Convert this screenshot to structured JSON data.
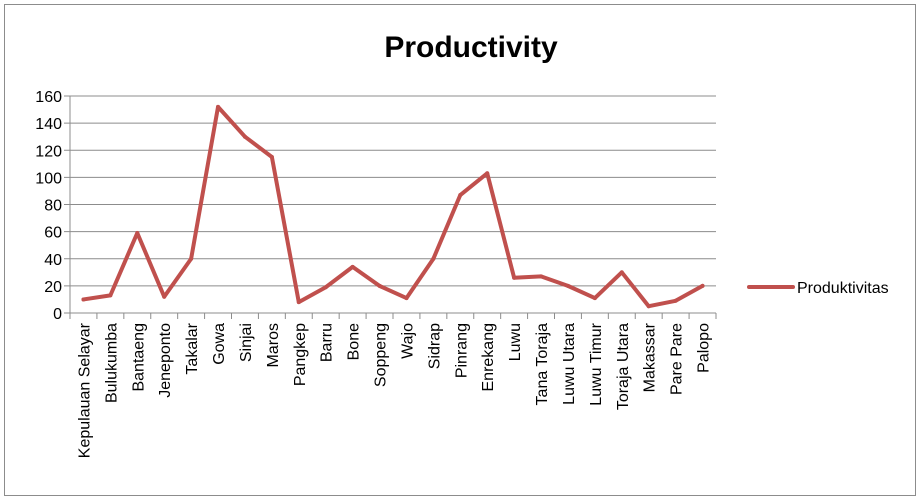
{
  "chart_data": {
    "type": "line",
    "title": "Productivity",
    "xlabel": "",
    "ylabel": "",
    "ylim": [
      0,
      160
    ],
    "yticks": [
      0,
      20,
      40,
      60,
      80,
      100,
      120,
      140,
      160
    ],
    "grid": true,
    "legend_position": "right",
    "categories": [
      "Kepulauan Selayar",
      "Bulukumba",
      "Bantaeng",
      "Jeneponto",
      "Takalar",
      "Gowa",
      "Sinjai",
      "Maros",
      "Pangkep",
      "Barru",
      "Bone",
      "Soppeng",
      "Wajo",
      "Sidrap",
      "Pinrang",
      "Enrekang",
      "Luwu",
      "Tana Toraja",
      "Luwu Utara",
      "Luwu Timur",
      "Toraja Utara",
      "Makassar",
      "Pare Pare",
      "Palopo"
    ],
    "series": [
      {
        "name": "Produktivitas",
        "color": "#c0504d",
        "values": [
          10,
          13,
          59,
          12,
          40,
          152,
          130,
          115,
          8,
          19,
          34,
          20,
          11,
          40,
          87,
          103,
          26,
          27,
          20,
          11,
          30,
          5,
          9,
          20
        ]
      }
    ]
  }
}
